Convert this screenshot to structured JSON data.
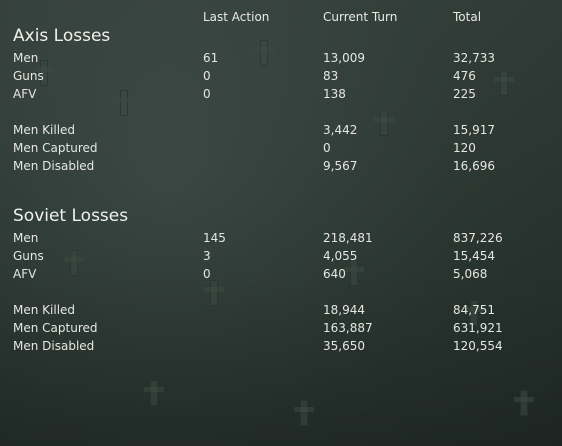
{
  "headers": {
    "last_action": "Last Action",
    "current_turn": "Current Turn",
    "total": "Total"
  },
  "axis": {
    "title": "Axis Losses",
    "rows": [
      {
        "label": "Men",
        "last": "61",
        "turn": "13,009",
        "total": "32,733"
      },
      {
        "label": "Guns",
        "last": "0",
        "turn": "83",
        "total": "476"
      },
      {
        "label": "AFV",
        "last": "0",
        "turn": "138",
        "total": "225"
      },
      {
        "label": "Men Killed",
        "last": "",
        "turn": "3,442",
        "total": "15,917"
      },
      {
        "label": "Men Captured",
        "last": "",
        "turn": "0",
        "total": "120"
      },
      {
        "label": "Men Disabled",
        "last": "",
        "turn": "9,567",
        "total": "16,696"
      }
    ]
  },
  "soviet": {
    "title": "Soviet Losses",
    "rows": [
      {
        "label": "Men",
        "last": "145",
        "turn": "218,481",
        "total": "837,226"
      },
      {
        "label": "Guns",
        "last": "3",
        "turn": "4,055",
        "total": "15,454"
      },
      {
        "label": "AFV",
        "last": "0",
        "turn": "640",
        "total": "5,068"
      },
      {
        "label": "Men Killed",
        "last": "",
        "turn": "18,944",
        "total": "84,751"
      },
      {
        "label": "Men Captured",
        "last": "",
        "turn": "163,887",
        "total": "631,921"
      },
      {
        "label": "Men Disabled",
        "last": "",
        "turn": "35,650",
        "total": "120,554"
      }
    ]
  }
}
